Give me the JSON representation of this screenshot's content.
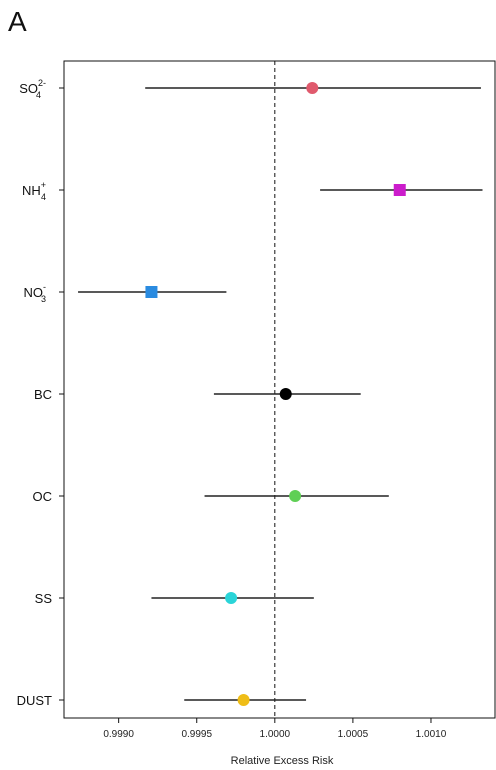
{
  "panel_label": "A",
  "chart_data": {
    "type": "scatter",
    "title": "",
    "xlabel": "Relative Excess Risk",
    "ylabel": "",
    "xlim": [
      0.99865,
      1.00141
    ],
    "xticks": [
      "0.9990",
      "0.9995",
      "1.0000",
      "1.0005",
      "1.0010"
    ],
    "reference_line": 1.0,
    "grid": false,
    "categories": [
      {
        "main": "SO",
        "sub": "4",
        "sup": "2-",
        "estimate": 1.00024,
        "lower": 0.99917,
        "upper": 1.00132,
        "color": "#e05a6d",
        "marker": "circle"
      },
      {
        "main": "NH",
        "sub": "4",
        "sup": "+",
        "estimate": 1.0008,
        "lower": 1.00029,
        "upper": 1.00133,
        "color": "#cc1ccc",
        "marker": "square"
      },
      {
        "main": "NO",
        "sub": "3",
        "sup": "-",
        "estimate": 0.99921,
        "lower": 0.99874,
        "upper": 0.99969,
        "color": "#2a8be0",
        "marker": "square"
      },
      {
        "main": "BC",
        "sub": "",
        "sup": "",
        "estimate": 1.00007,
        "lower": 0.99961,
        "upper": 1.00055,
        "color": "#000000",
        "marker": "circle"
      },
      {
        "main": "OC",
        "sub": "",
        "sup": "",
        "estimate": 1.00013,
        "lower": 0.99955,
        "upper": 1.00073,
        "color": "#5fcf55",
        "marker": "circle"
      },
      {
        "main": "SS",
        "sub": "",
        "sup": "",
        "estimate": 0.99972,
        "lower": 0.99921,
        "upper": 1.00025,
        "color": "#2ad4d8",
        "marker": "circle"
      },
      {
        "main": "DUST",
        "sub": "",
        "sup": "",
        "estimate": 0.9998,
        "lower": 0.99942,
        "upper": 1.0002,
        "color": "#efbd17",
        "marker": "circle"
      }
    ]
  }
}
